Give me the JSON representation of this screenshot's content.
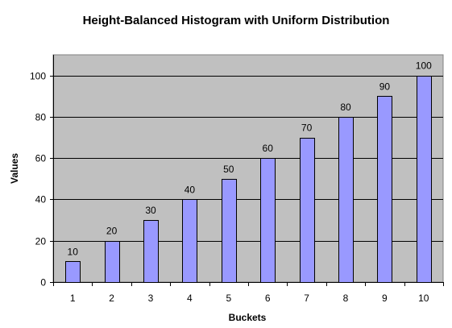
{
  "chart_data": {
    "type": "bar",
    "title": "Height-Balanced Histogram with Uniform Distribution",
    "xlabel": "Buckets",
    "ylabel": "Values",
    "categories": [
      "1",
      "2",
      "3",
      "4",
      "5",
      "6",
      "7",
      "8",
      "9",
      "10"
    ],
    "values": [
      10,
      20,
      30,
      40,
      50,
      60,
      70,
      80,
      90,
      100
    ],
    "data_labels": [
      "10",
      "20",
      "30",
      "40",
      "50",
      "60",
      "70",
      "80",
      "90",
      "100"
    ],
    "ylim": [
      0,
      110
    ],
    "yticks": [
      0,
      20,
      40,
      60,
      80,
      100
    ],
    "ytick_labels": [
      "0",
      "20",
      "40",
      "60",
      "80",
      "100"
    ],
    "grid": true,
    "legend": "none",
    "colors": {
      "bar_fill": "#9999ff",
      "bar_stroke": "#000000",
      "plot_background": "#c0c0c0",
      "gridline": "#000000"
    }
  }
}
